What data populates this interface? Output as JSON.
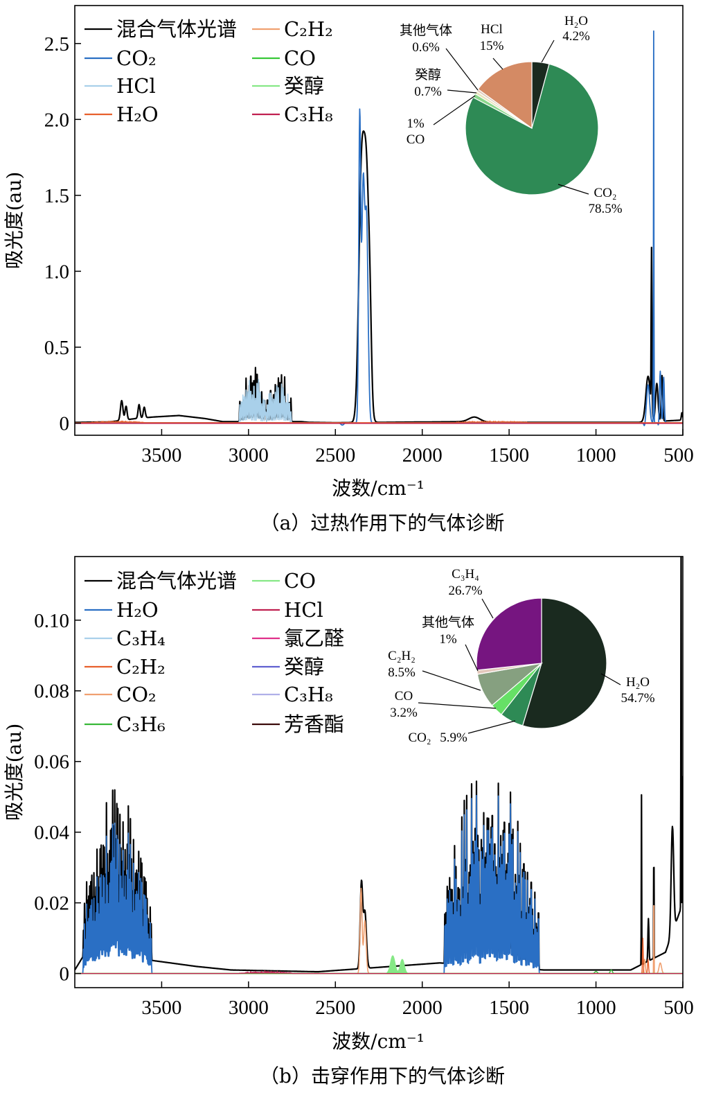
{
  "chart_data": [
    {
      "type": "line",
      "panel_id": "a",
      "caption": "（a）过热作用下的气体诊断",
      "xlabel": "波数/cm⁻¹",
      "ylabel": "吸光度(au)",
      "xlim": [
        4000,
        500
      ],
      "ylim": [
        -0.08,
        2.75
      ],
      "xticks": [
        3500,
        3000,
        2500,
        2000,
        1500,
        1000,
        500
      ],
      "xtick_labels": [
        "3500",
        "3000",
        "2500",
        "2000",
        "1500",
        "1000",
        "500"
      ],
      "yticks": [
        0,
        0.5,
        1.0,
        1.5,
        2.0,
        2.5
      ],
      "ytick_labels": [
        "0",
        "0.5",
        "1.0",
        "1.5",
        "2.0",
        "2.5"
      ],
      "legend": [
        {
          "label": "混合气体光谱",
          "color": "#000000"
        },
        {
          "label": "CO₂",
          "color": "#2a6fc4"
        },
        {
          "label": "HCl",
          "color": "#a9d0ea"
        },
        {
          "label": "H₂O",
          "color": "#e8602c"
        },
        {
          "label": "C₂H₂",
          "color": "#f0a070"
        },
        {
          "label": "CO",
          "color": "#37c837"
        },
        {
          "label": "癸醇",
          "color": "#86e886"
        },
        {
          "label": "C₃H₈",
          "color": "#c02050"
        }
      ],
      "series": [
        {
          "name": "混合气体光谱",
          "color": "#000000",
          "width": 2.2,
          "seed": 11,
          "base": [
            [
              4000,
              0.005
            ],
            [
              3800,
              0.008
            ],
            [
              3650,
              0.03
            ],
            [
              3550,
              0.04
            ],
            [
              3400,
              0.05
            ],
            [
              3250,
              0.03
            ],
            [
              3150,
              0.01
            ],
            [
              3050,
              0.01
            ],
            [
              2700,
              0.01
            ],
            [
              2650,
              0.005
            ],
            [
              2500,
              0.003
            ],
            [
              1700,
              0.01
            ],
            [
              1600,
              0.005
            ],
            [
              760,
              0.005
            ],
            [
              500,
              0.02
            ]
          ],
          "peaks": [
            [
              3730,
              0.13,
              10
            ],
            [
              3705,
              0.09,
              8
            ],
            [
              3630,
              0.09,
              8
            ],
            [
              3600,
              0.07,
              8
            ],
            [
              2350,
              1.55,
              22
            ],
            [
              2320,
              1.5,
              22
            ],
            [
              2300,
              0.3,
              12
            ],
            [
              1700,
              0.03,
              45
            ],
            [
              680,
              1.06,
              3
            ],
            [
              700,
              0.3,
              18
            ],
            [
              650,
              0.25,
              10
            ],
            [
              620,
              0.3,
              6
            ],
            [
              505,
              0.05,
              5
            ]
          ],
          "bands": [
            [
              3050,
              2900,
              0.4,
              9
            ],
            [
              2900,
              2750,
              0.37,
              9
            ]
          ]
        },
        {
          "name": "HCl",
          "color": "#a9d0ea",
          "width": 1.6,
          "seed": 23,
          "base": [
            [
              4000,
              0
            ],
            [
              500,
              0
            ]
          ],
          "peaks": [],
          "bands": [
            [
              3050,
              2900,
              0.36,
              9
            ],
            [
              2900,
              2750,
              0.32,
              9
            ]
          ]
        },
        {
          "name": "CO₂",
          "color": "#2a6fc4",
          "width": 1.8,
          "seed": 37,
          "base": [
            [
              4000,
              0.002
            ],
            [
              500,
              0.002
            ]
          ],
          "peaks": [
            [
              2360,
              1.97,
              8
            ],
            [
              2340,
              1.55,
              12
            ],
            [
              2320,
              1.3,
              12
            ],
            [
              2460,
              -0.015,
              12
            ],
            [
              668,
              2.58,
              1.8
            ],
            [
              720,
              -0.03,
              6
            ],
            [
              700,
              0.25,
              12
            ],
            [
              630,
              0.34,
              6
            ],
            [
              610,
              0.3,
              5
            ],
            [
              640,
              -0.03,
              3
            ]
          ],
          "bands": []
        },
        {
          "name": "H₂O",
          "color": "#e8602c",
          "width": 1.4,
          "seed": 41,
          "base": [
            [
              4000,
              0.003
            ],
            [
              500,
              0.003
            ]
          ],
          "peaks": [],
          "bands": [
            [
              3900,
              3600,
              0.012,
              8
            ],
            [
              1800,
              1400,
              0.012,
              10
            ]
          ]
        },
        {
          "name": "C₃H₈",
          "color": "#c02050",
          "width": 1.4,
          "seed": 0,
          "base": [
            [
              4000,
              -0.002
            ],
            [
              500,
              -0.002
            ]
          ],
          "peaks": [],
          "bands": []
        }
      ],
      "inset_pie": {
        "slices": [
          {
            "label": "H₂O",
            "value": 4.2,
            "value_label": "4.2%",
            "color": "#1a2a1f"
          },
          {
            "label": "CO₂",
            "value": 78.5,
            "value_label": "78.5%",
            "color": "#2e8a55"
          },
          {
            "label": "CO",
            "value": 1.0,
            "value_label": "1%",
            "color": "#8cd68c"
          },
          {
            "label": "癸醇",
            "value": 0.7,
            "value_label": "0.7%",
            "color": "#e8e3bc"
          },
          {
            "label": "其他气体",
            "value": 0.6,
            "value_label": "0.6%",
            "color": "#e0cbbd"
          },
          {
            "label": "HCl",
            "value": 15.0,
            "value_label": "15%",
            "color": "#d48a64"
          }
        ]
      }
    },
    {
      "type": "line",
      "panel_id": "b",
      "caption": "（b）击穿作用下的气体诊断",
      "xlabel": "波数/cm⁻¹",
      "ylabel": "吸光度(au)",
      "xlim": [
        4000,
        500
      ],
      "ylim": [
        -0.004,
        0.118
      ],
      "xticks": [
        3500,
        3000,
        2500,
        2000,
        1500,
        1000,
        500
      ],
      "xtick_labels": [
        "3500",
        "3000",
        "2500",
        "2000",
        "1500",
        "1000",
        "500"
      ],
      "yticks": [
        0,
        0.02,
        0.04,
        0.06,
        0.08,
        0.1
      ],
      "ytick_labels": [
        "0",
        "0.02",
        "0.04",
        "0.06",
        "0.08",
        "0.10"
      ],
      "legend": [
        {
          "label": "混合气体光谱",
          "color": "#000000"
        },
        {
          "label": "H₂O",
          "color": "#2a6fc4"
        },
        {
          "label": "C₃H₄",
          "color": "#a9d0ea"
        },
        {
          "label": "C₂H₂",
          "color": "#e8602c"
        },
        {
          "label": "CO₂",
          "color": "#f0a070"
        },
        {
          "label": "C₃H₆",
          "color": "#37b837"
        },
        {
          "label": "CO",
          "color": "#86e886"
        },
        {
          "label": "HCl",
          "color": "#c02050"
        },
        {
          "label": "氯乙醛",
          "color": "#e0308a"
        },
        {
          "label": "癸醇",
          "color": "#6060d0"
        },
        {
          "label": "C₃H₈",
          "color": "#b0b0e8"
        },
        {
          "label": "芳香酯",
          "color": "#3a0a0a"
        }
      ],
      "series": [
        {
          "name": "混合气体光谱",
          "color": "#000000",
          "width": 2.2,
          "seed": 53,
          "base": [
            [
              4000,
              0.001
            ],
            [
              3950,
              0.005
            ],
            [
              3800,
              0.008
            ],
            [
              3600,
              0.004
            ],
            [
              3450,
              0.003
            ],
            [
              3300,
              0.002
            ],
            [
              3100,
              0.001
            ],
            [
              2600,
              0.0005
            ],
            [
              1900,
              0.003
            ],
            [
              1300,
              0.001
            ],
            [
              800,
              0.001
            ],
            [
              600,
              0.006
            ],
            [
              500,
              0.02
            ]
          ],
          "peaks": [
            [
              2350,
              0.024,
              10
            ],
            [
              2330,
              0.016,
              12
            ],
            [
              738,
              0.048,
              1.5
            ],
            [
              667,
              0.04,
              1.5
            ],
            [
              698,
              0.012,
              4
            ],
            [
              510,
              0.112,
              1.8
            ],
            [
              503,
              0.072,
              1.2
            ],
            [
              560,
              0.03,
              10
            ]
          ],
          "bands": [
            [
              3950,
              3560,
              0.045,
              6
            ],
            [
              1870,
              1330,
              0.06,
              7
            ]
          ]
        },
        {
          "name": "H₂O",
          "color": "#2a6fc4",
          "width": 1.8,
          "seed": 53,
          "base": [
            [
              4000,
              0
            ],
            [
              500,
              0
            ]
          ],
          "peaks": [],
          "bands": [
            [
              3950,
              3560,
              0.043,
              6
            ],
            [
              1870,
              1330,
              0.058,
              7
            ]
          ]
        },
        {
          "name": "CO₂",
          "color": "#f0a070",
          "width": 1.6,
          "seed": 61,
          "base": [
            [
              4000,
              0
            ],
            [
              500,
              0
            ]
          ],
          "peaks": [
            [
              2352,
              0.024,
              8
            ],
            [
              2330,
              0.015,
              10
            ],
            [
              667,
              0.032,
              1.4
            ],
            [
              720,
              0.004,
              6
            ],
            [
              630,
              0.003,
              10
            ]
          ],
          "bands": []
        },
        {
          "name": "C₂H₂",
          "color": "#e8602c",
          "width": 1.4,
          "seed": 67,
          "base": [
            [
              4000,
              0
            ],
            [
              500,
              0
            ]
          ],
          "peaks": [
            [
              730,
              0.01,
              3
            ],
            [
              700,
              0.004,
              4
            ]
          ],
          "bands": []
        },
        {
          "name": "CO",
          "color": "#86e886",
          "width": 1.4,
          "fill": true,
          "seed": 0,
          "base": [
            [
              4000,
              0
            ],
            [
              500,
              0
            ]
          ],
          "peaks": [
            [
              2170,
              0.005,
              18
            ],
            [
              2115,
              0.004,
              16
            ]
          ],
          "bands": []
        },
        {
          "name": "C₃H₆",
          "color": "#37b837",
          "width": 1.4,
          "seed": 0,
          "base": [
            [
              4000,
              0
            ],
            [
              500,
              0
            ]
          ],
          "peaks": [
            [
              912,
              0.001,
              8
            ],
            [
              1000,
              0.0006,
              10
            ]
          ],
          "bands": []
        },
        {
          "name": "HCl",
          "color": "#c02050",
          "width": 1.2,
          "seed": 71,
          "base": [
            [
              4000,
              0
            ],
            [
              500,
              0
            ]
          ],
          "peaks": [],
          "bands": [
            [
              3050,
              2750,
              0.0008,
              9
            ]
          ]
        }
      ],
      "inset_pie": {
        "slices": [
          {
            "label": "H₂O",
            "value": 54.7,
            "value_label": "54.7%",
            "color": "#1a2a1f"
          },
          {
            "label": "CO₂",
            "value": 5.9,
            "value_label": "5.9%",
            "color": "#2e8a55"
          },
          {
            "label": "CO",
            "value": 3.2,
            "value_label": "3.2%",
            "color": "#66e066"
          },
          {
            "label": "C₂H₂",
            "value": 8.5,
            "value_label": "8.5%",
            "color": "#86a080"
          },
          {
            "label": "其他气体",
            "value": 1.0,
            "value_label": "1%",
            "color": "#e3c8bc"
          },
          {
            "label": "C₃H₄",
            "value": 26.7,
            "value_label": "26.7%",
            "color": "#761580"
          }
        ]
      }
    }
  ]
}
